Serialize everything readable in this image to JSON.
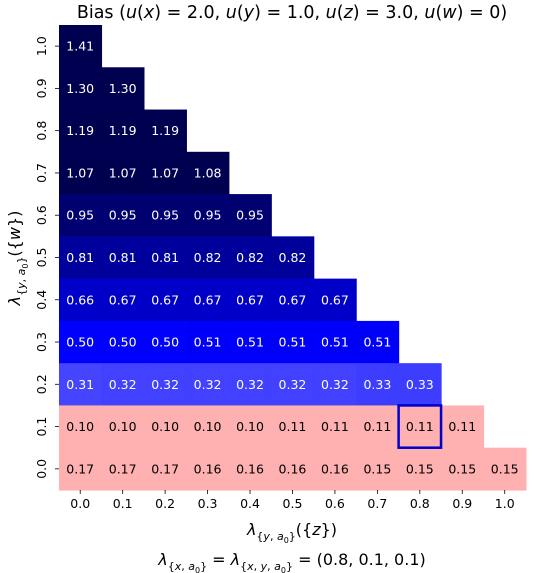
{
  "chart_data": {
    "type": "heatmap",
    "title": "Bias ($u(x) = 2.0$, $u(y) = 1.0$, $u(z) = 3.0$, $u(w) = 0$)",
    "xlabel": "λ_{y,a0}({z})",
    "ylabel": "λ_{y,a0}({w})",
    "footnote": "λ_{x,a0} = λ_{x,y,a0} = (0.8, 0.1, 0.1)",
    "x_ticks": [
      "0.0",
      "0.1",
      "0.2",
      "0.3",
      "0.4",
      "0.5",
      "0.6",
      "0.7",
      "0.8",
      "0.9",
      "1.0"
    ],
    "y_ticks": [
      "1.0",
      "0.9",
      "0.8",
      "0.7",
      "0.6",
      "0.5",
      "0.4",
      "0.3",
      "0.2",
      "0.1",
      "0.0"
    ],
    "rows": [
      {
        "y": "1.0",
        "values": [
          "1.41"
        ]
      },
      {
        "y": "0.9",
        "values": [
          "1.30",
          "1.30"
        ]
      },
      {
        "y": "0.8",
        "values": [
          "1.19",
          "1.19",
          "1.19"
        ]
      },
      {
        "y": "0.7",
        "values": [
          "1.07",
          "1.07",
          "1.07",
          "1.08"
        ]
      },
      {
        "y": "0.6",
        "values": [
          "0.95",
          "0.95",
          "0.95",
          "0.95",
          "0.95"
        ]
      },
      {
        "y": "0.5",
        "values": [
          "0.81",
          "0.81",
          "0.81",
          "0.82",
          "0.82",
          "0.82"
        ]
      },
      {
        "y": "0.4",
        "values": [
          "0.66",
          "0.67",
          "0.67",
          "0.67",
          "0.67",
          "0.67",
          "0.67"
        ]
      },
      {
        "y": "0.3",
        "values": [
          "0.50",
          "0.50",
          "0.50",
          "0.51",
          "0.51",
          "0.51",
          "0.51",
          "0.51"
        ]
      },
      {
        "y": "0.2",
        "values": [
          "0.31",
          "0.32",
          "0.32",
          "0.32",
          "0.32",
          "0.32",
          "0.32",
          "0.33",
          "0.33"
        ]
      },
      {
        "y": "0.1",
        "values": [
          "0.10",
          "0.10",
          "0.10",
          "0.10",
          "0.10",
          "0.11",
          "0.11",
          "0.11",
          "0.11",
          "0.11"
        ]
      },
      {
        "y": "0.0",
        "values": [
          "0.17",
          "0.17",
          "0.17",
          "0.16",
          "0.16",
          "0.16",
          "0.16",
          "0.15",
          "0.15",
          "0.15",
          "0.15"
        ]
      }
    ],
    "highlight": {
      "x": "0.8",
      "y": "0.1"
    },
    "colors": {
      "high": "#000050",
      "mid": "#0000ff",
      "low": "#ffffff",
      "negative": "#ffb0b0",
      "highlight": "#0000cc"
    },
    "color_range": [
      0,
      1.41
    ]
  }
}
